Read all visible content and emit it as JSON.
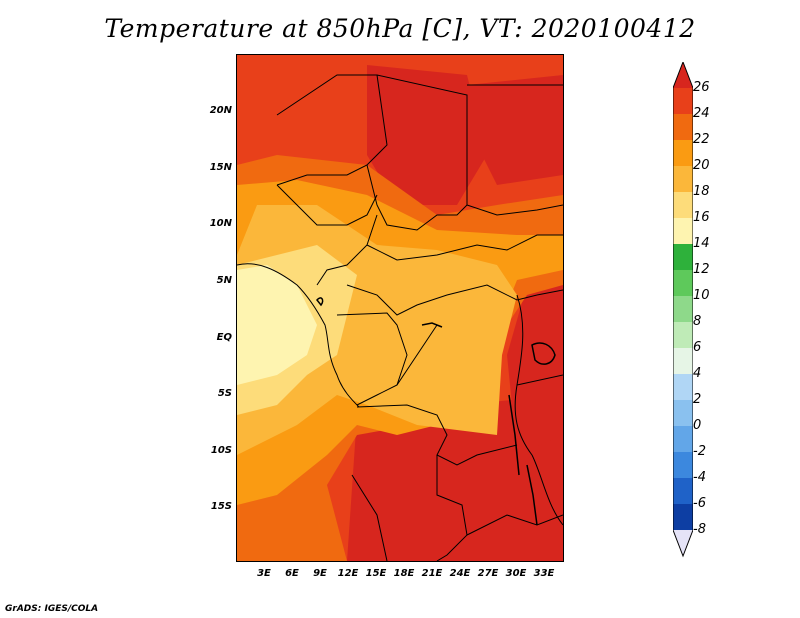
{
  "title": "Temperature at 850hPa [C], VT: 2020100412",
  "credit": "GrADS: IGES/COLA",
  "map": {
    "lat_labels": [
      "20N",
      "15N",
      "10N",
      "5N",
      "EQ",
      "5S",
      "10S",
      "15S"
    ],
    "lon_labels": [
      "3E",
      "6E",
      "9E",
      "12E",
      "15E",
      "18E",
      "21E",
      "24E",
      "27E",
      "30E",
      "33E"
    ],
    "lat_range": [
      -20,
      24.5
    ],
    "lon_range": [
      0,
      35
    ]
  },
  "legend": {
    "levels": [
      "26",
      "24",
      "22",
      "20",
      "18",
      "16",
      "14",
      "12",
      "10",
      "8",
      "6",
      "4",
      "2",
      "0",
      "-2",
      "-4",
      "-6",
      "-8"
    ],
    "colors": {
      "gt26": "#d7261e",
      "24_26": "#e8401a",
      "22_24": "#f06a10",
      "20_22": "#fa9b12",
      "18_20": "#fbb73a",
      "16_18": "#fddc7a",
      "14_16": "#fef4b0",
      "12_14": "#2eb13b",
      "10_12": "#5ec95b",
      "8_10": "#8ed98a",
      "6_8": "#bfebb7",
      "4_6": "#e6f5e6",
      "2_4": "#b0d6f5",
      "0_2": "#8ac1ef",
      "m2_0": "#62a6e8",
      "m4_m2": "#3c88de",
      "m6_m4": "#1f62c8",
      "m8_m6": "#0d3ea3",
      "lt_m8": "#0a1f6e",
      "below": "#e5e3f7"
    }
  }
}
